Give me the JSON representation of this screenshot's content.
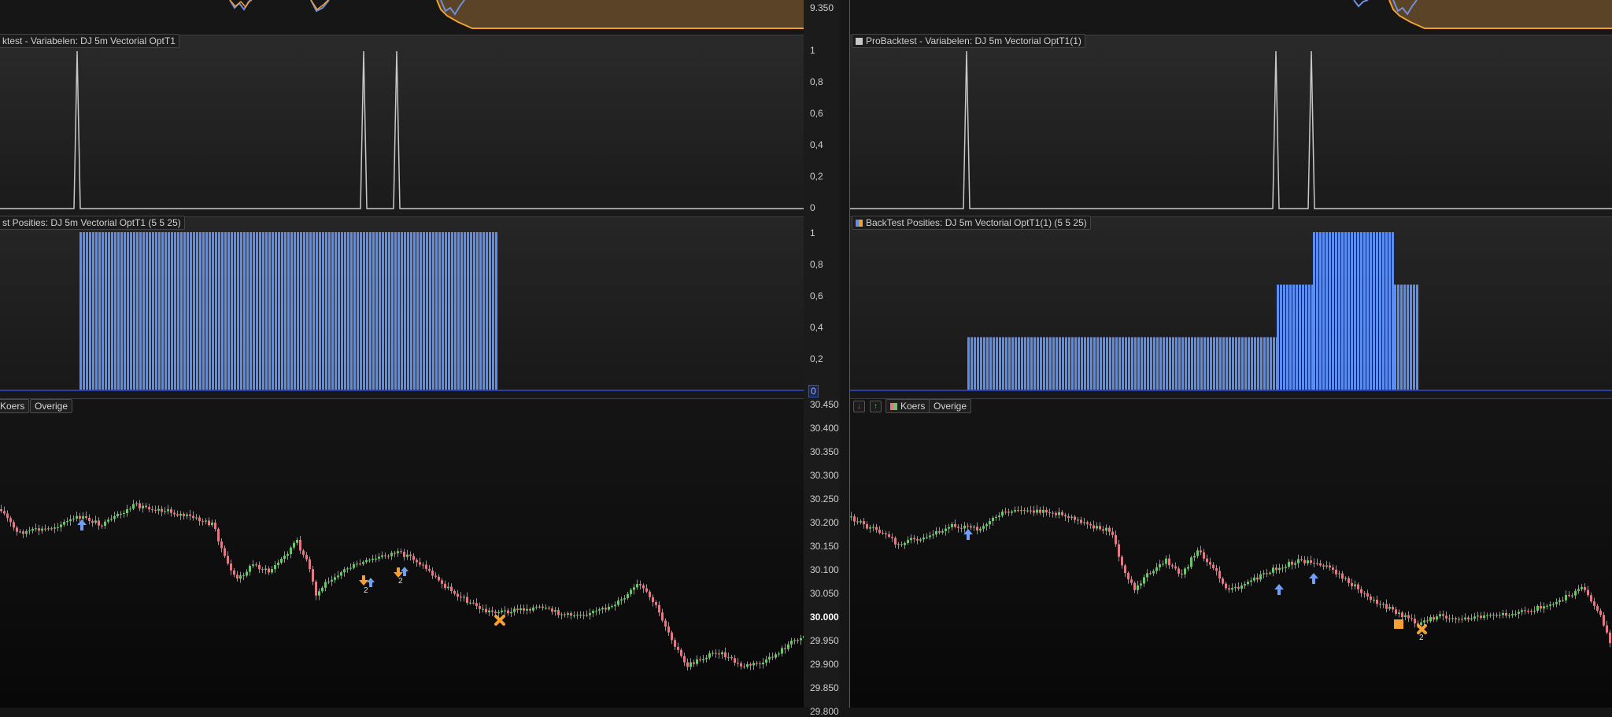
{
  "left": {
    "variables_label": "ktest - Variabelen: DJ 5m Vectorial OptT1",
    "positions_label": "st Posities: DJ 5m Vectorial OptT1 (5 5 25)",
    "koers_label": "Koers",
    "overige_label": "Overige",
    "marker_counts": [
      "2",
      "2"
    ]
  },
  "right": {
    "variables_label": "ProBacktest - Variabelen: DJ 5m Vectorial OptT1(1)",
    "positions_label": "BackTest Posities: DJ 5m Vectorial OptT1(1) (5 5 25)",
    "koers_label": "Koers",
    "overige_label": "Overige",
    "marker_counts": [
      "2"
    ]
  },
  "axis": {
    "top_pane": [
      "9.350"
    ],
    "variables_pane": [
      "1",
      "0,8",
      "0,6",
      "0,4",
      "0,2",
      "0"
    ],
    "positions_pane": [
      "1",
      "0,8",
      "0,6",
      "0,4",
      "0,2",
      "0"
    ],
    "price_pane": [
      "30.450",
      "30.400",
      "30.350",
      "30.300",
      "30.250",
      "30.200",
      "30.150",
      "30.100",
      "30.050",
      "30.000",
      "29.950",
      "29.900",
      "29.850",
      "29.800"
    ],
    "price_highlight": "30.000"
  },
  "colors": {
    "background": "#161616",
    "variable_line": "#c8c8c8",
    "position_bar": "#5b8ef0",
    "orange_line": "#f0a030",
    "orange_fill": "#5a4326",
    "blue_line": "#6f8fd8",
    "candle_up": "#6cc46c",
    "candle_down": "#e07a86",
    "buy_arrow": "#6fa0f5",
    "marker_orange": "#f5a030"
  },
  "icons": {
    "buy": "arrow-up-icon",
    "sell": "arrow-down-icon",
    "exit": "cross-icon",
    "stop": "square-icon"
  }
}
